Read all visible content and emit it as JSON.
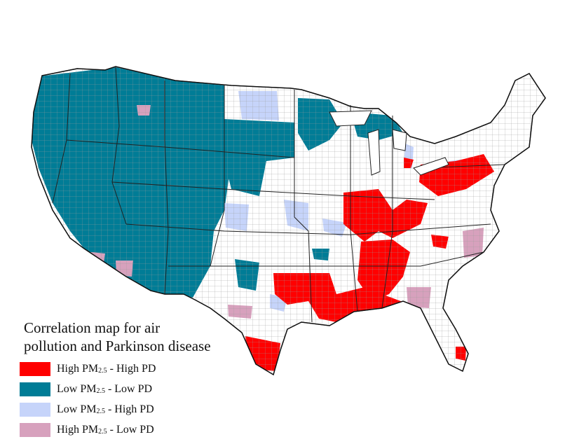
{
  "legend": {
    "title_line1": "Correlation map for air",
    "title_line2": "pollution and Parkinson disease",
    "items": [
      {
        "pm_prefix": "High PM",
        "pm_sub": "2.5",
        "suffix": " - High PD",
        "color": "#ff0000"
      },
      {
        "pm_prefix": "Low PM",
        "pm_sub": "2.5",
        "suffix": " - Low PD",
        "color": "#007c96"
      },
      {
        "pm_prefix": "Low PM",
        "pm_sub": "2.5",
        "suffix": " - High PD",
        "color": "#c6d4fa"
      },
      {
        "pm_prefix": "High PM",
        "pm_sub": "2.5",
        "suffix": " - Low PD",
        "color": "#d7a1bd"
      }
    ]
  },
  "colors": {
    "high_high": "#ff0000",
    "low_low": "#007c96",
    "low_high": "#c6d4fa",
    "high_low": "#d7a1bd",
    "not_significant": "#ffffff",
    "border": "#333333"
  }
}
